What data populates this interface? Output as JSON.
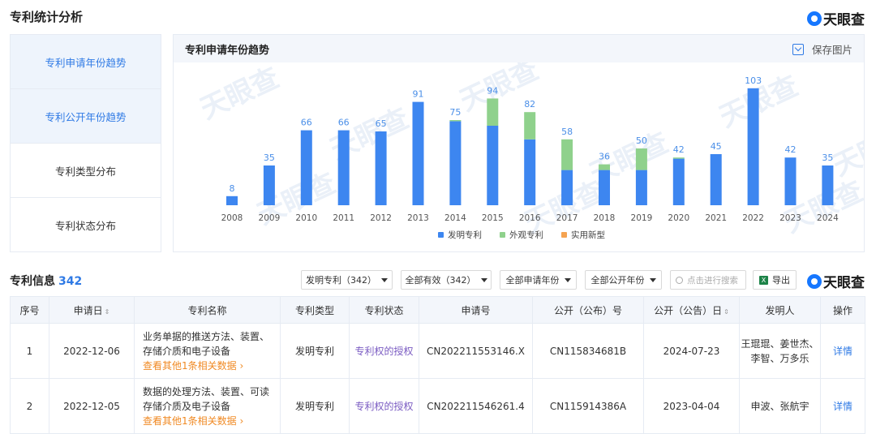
{
  "section_title": "专利统计分析",
  "logo_text": "天眼查",
  "nav": [
    {
      "label": "专利申请年份趋势",
      "active": true
    },
    {
      "label": "专利公开年份趋势",
      "active": true
    },
    {
      "label": "专利类型分布",
      "active": false
    },
    {
      "label": "专利状态分布",
      "active": false
    }
  ],
  "panel": {
    "title": "专利申请年份趋势",
    "save_label": "保存图片"
  },
  "chart_data": {
    "type": "bar",
    "stacked": true,
    "categories": [
      "2008",
      "2009",
      "2010",
      "2011",
      "2012",
      "2013",
      "2014",
      "2015",
      "2016",
      "2017",
      "2018",
      "2019",
      "2020",
      "2021",
      "2022",
      "2023",
      "2024"
    ],
    "totals": [
      8,
      35,
      66,
      66,
      65,
      91,
      75,
      94,
      82,
      58,
      36,
      50,
      42,
      45,
      103,
      42,
      35
    ],
    "series": [
      {
        "name": "发明专利",
        "color": "#3d86f0",
        "values": [
          8,
          35,
          66,
          66,
          65,
          91,
          74,
          70,
          58,
          31,
          31,
          31,
          41,
          45,
          103,
          42,
          35
        ]
      },
      {
        "name": "外观专利",
        "color": "#8fd18c",
        "values": [
          0,
          0,
          0,
          0,
          0,
          0,
          1,
          24,
          24,
          27,
          5,
          19,
          1,
          0,
          0,
          0,
          0
        ]
      },
      {
        "name": "实用新型",
        "color": "#f5a351",
        "values": [
          0,
          0,
          0,
          0,
          0,
          0,
          0,
          0,
          0,
          0,
          0,
          0,
          0,
          0,
          0,
          0,
          0
        ]
      }
    ],
    "ylim": [
      0,
      110
    ],
    "legend_position": "bottom",
    "grid": false,
    "label_color": "#4b8fe8"
  },
  "info": {
    "title": "专利信息",
    "count": "342"
  },
  "filters": [
    {
      "label": "发明专利（342）"
    },
    {
      "label": "全部有效（342）"
    },
    {
      "label": "全部申请年份"
    },
    {
      "label": "全部公开年份"
    }
  ],
  "search_placeholder": "点击进行搜索",
  "export_label": "导出",
  "table": {
    "headers": [
      "序号",
      "申请日",
      "专利名称",
      "专利类型",
      "专利状态",
      "申请号",
      "公开（公布）号",
      "公开（公告）日",
      "发明人",
      "操作"
    ],
    "sort_icon": "⇕",
    "rows": [
      {
        "index": "1",
        "apply_date": "2022-12-06",
        "name": "业务单据的推送方法、装置、存储介质和电子设备",
        "more": "查看其他1条相关数据",
        "type": "发明专利",
        "status": "专利权的授权",
        "apply_no": "CN202211553146.X",
        "pub_no": "CN115834681B",
        "pub_date": "2024-07-23",
        "inventors": "王琨琨、姜世杰、李智、万多乐",
        "action": "详情"
      },
      {
        "index": "2",
        "apply_date": "2022-12-05",
        "name": "数据的处理方法、装置、可读存储介质及电子设备",
        "more": "查看其他1条相关数据",
        "type": "发明专利",
        "status": "专利权的授权",
        "apply_no": "CN202211546261.4",
        "pub_no": "CN115914386A",
        "pub_date": "2023-04-04",
        "inventors": "申波、张航宇",
        "action": "详情"
      }
    ]
  }
}
